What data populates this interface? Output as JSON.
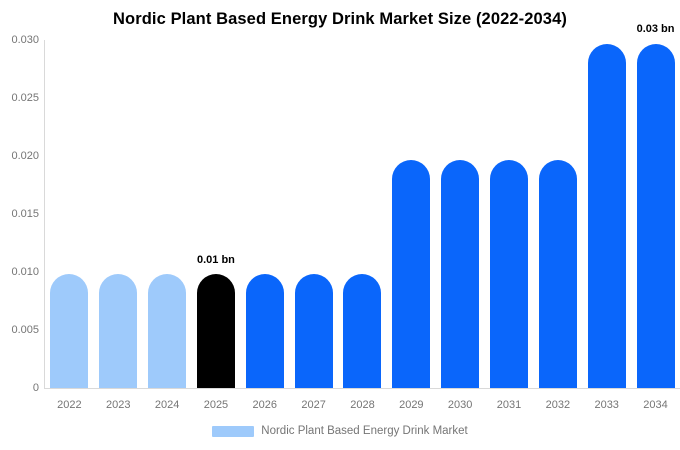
{
  "chart_data": {
    "type": "bar",
    "title": "Nordic Plant Based Energy Drink Market Size (2022-2034)",
    "xlabel": "",
    "ylabel": "",
    "unit": "bn",
    "categories": [
      "2022",
      "2023",
      "2024",
      "2025",
      "2026",
      "2027",
      "2028",
      "2029",
      "2030",
      "2031",
      "2032",
      "2033",
      "2034"
    ],
    "values": [
      0.0098,
      0.0098,
      0.0098,
      0.0098,
      0.0098,
      0.0098,
      0.0098,
      0.0197,
      0.0197,
      0.0197,
      0.0197,
      0.0297,
      0.0297
    ],
    "bar_colors": [
      "#9ECAFB",
      "#9ECAFB",
      "#9ECAFB",
      "#000000",
      "#0A66FB",
      "#0A66FB",
      "#0A66FB",
      "#0A66FB",
      "#0A66FB",
      "#0A66FB",
      "#0A66FB",
      "#0A66FB",
      "#0A66FB"
    ],
    "value_labels": [
      "",
      "",
      "",
      "0.01 bn",
      "",
      "",
      "",
      "",
      "",
      "",
      "",
      "",
      "0.03 bn"
    ],
    "y_ticks": {
      "labels": [
        "0.030",
        "0.025",
        "0.020",
        "0.015",
        "0.010",
        "0.005",
        "0"
      ],
      "values": [
        0.03,
        0.025,
        0.02,
        0.015,
        0.01,
        0.005,
        0
      ]
    },
    "ylim": [
      0,
      0.03
    ],
    "grid": false,
    "legend_position": "bottom",
    "legend": [
      {
        "label": "Nordic Plant Based Energy Drink Market",
        "color": "#9ECAFB"
      }
    ]
  },
  "colors": {
    "background": "#FFFFFF",
    "axis_line": "#D9D9D9",
    "tick_text": "#757575",
    "title_text": "#000000",
    "annotation_text": "#000000"
  }
}
